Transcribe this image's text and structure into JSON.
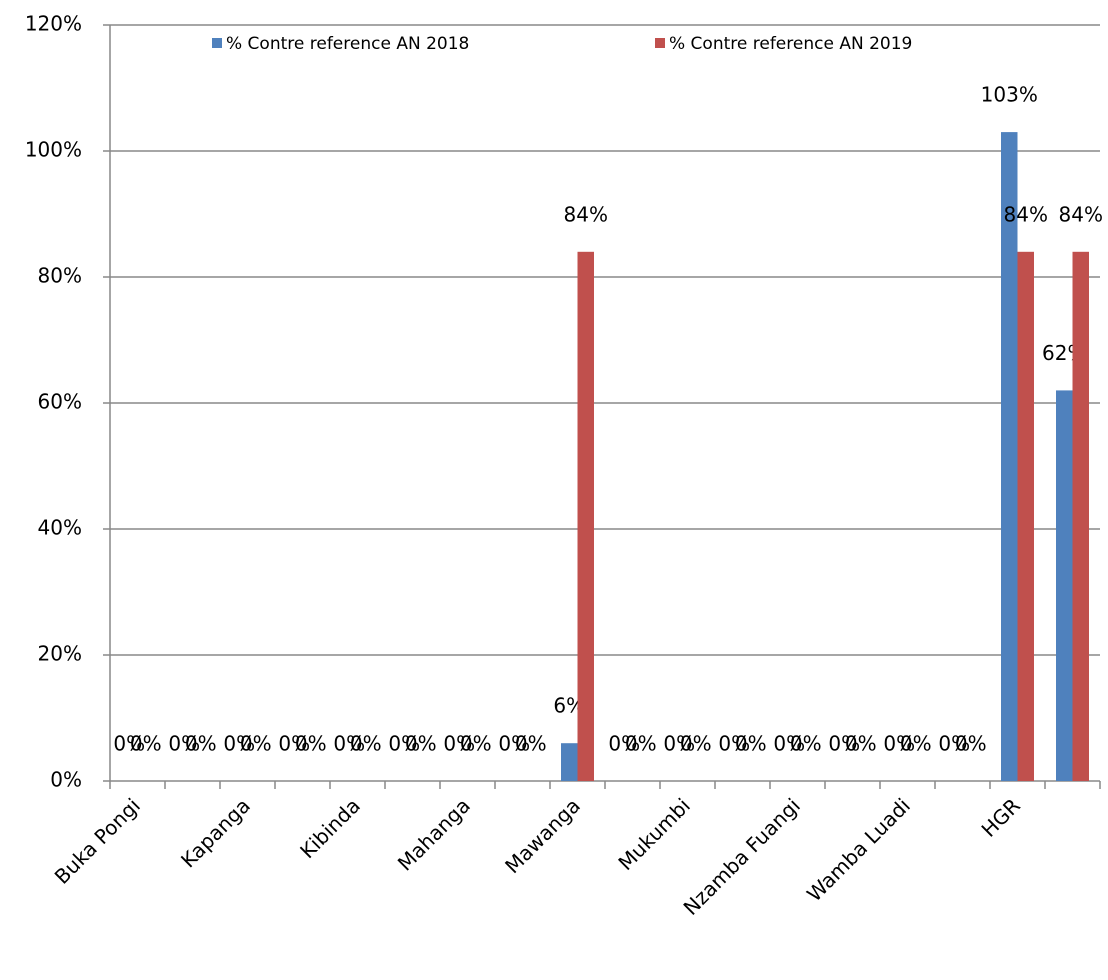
{
  "chart_data": {
    "type": "bar",
    "categories": [
      "Buka Pongi",
      null,
      "Kapanga",
      null,
      "Kibinda",
      null,
      "Mahanga",
      null,
      "Mawanga",
      null,
      "Mukumbi",
      null,
      "Nzamba Fuangi",
      null,
      "Wamba Luadi",
      null,
      "HGR",
      null
    ],
    "series": [
      {
        "name": "% Contre reference AN  2018",
        "color": "#4f81bd",
        "values": [
          0,
          0,
          0,
          0,
          0,
          0,
          0,
          0,
          6,
          0,
          0,
          0,
          0,
          0,
          0,
          0,
          103,
          62
        ],
        "value_labels": [
          "0%",
          "0%",
          "0%",
          "0%",
          "0%",
          "0%",
          "0%",
          "0%",
          "6%",
          "0%",
          "0%",
          "0%",
          "0%",
          "0%",
          "0%",
          "0%",
          "103%",
          "62%"
        ]
      },
      {
        "name": "% Contre reference AN  2019",
        "color": "#c0504d",
        "values": [
          0,
          0,
          0,
          0,
          0,
          0,
          0,
          0,
          84,
          0,
          0,
          0,
          0,
          0,
          0,
          0,
          84,
          84
        ],
        "value_labels": [
          "0%",
          "0%",
          "0%",
          "0%",
          "0%",
          "0%",
          "0%",
          "0%",
          "84%",
          "0%",
          "0%",
          "0%",
          "0%",
          "0%",
          "0%",
          "0%",
          "84%",
          "84%"
        ]
      }
    ],
    "ylim": [
      0,
      120
    ],
    "yticks": [
      {
        "value": 0,
        "label": "0%"
      },
      {
        "value": 20,
        "label": "20%"
      },
      {
        "value": 40,
        "label": "40%"
      },
      {
        "value": 60,
        "label": "60%"
      },
      {
        "value": 80,
        "label": "80%"
      },
      {
        "value": 100,
        "label": "100%"
      },
      {
        "value": 120,
        "label": "120%"
      }
    ],
    "grid": true,
    "legend": "top"
  }
}
